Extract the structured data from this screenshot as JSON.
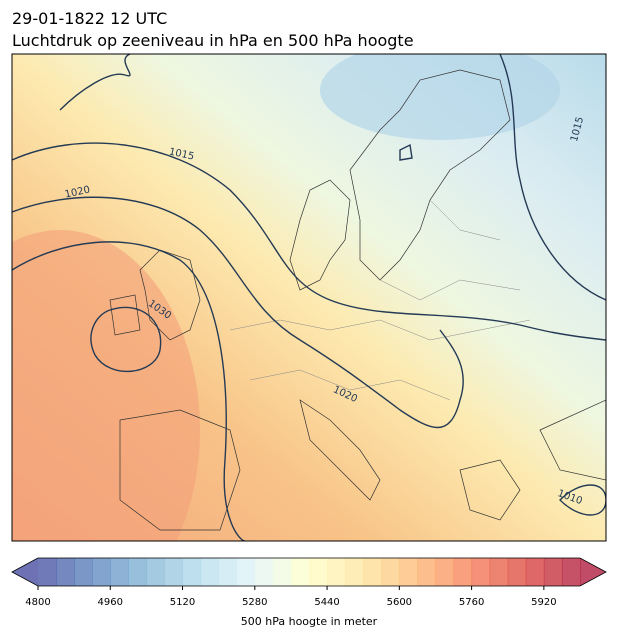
{
  "title": "29-01-1822 12 UTC",
  "subtitle": "Luchtdruk op zeeniveau in hPa en 500 hPa hoogte",
  "isobar_labels": [
    1015,
    1020,
    1030,
    1020,
    1015,
    1010
  ],
  "colorbar": {
    "range": [
      4800,
      6000
    ],
    "step": 40,
    "ticks": [
      4800,
      4960,
      5120,
      5280,
      5440,
      5600,
      5760,
      5920
    ],
    "label": "500 hPa hoogte in meter"
  }
}
